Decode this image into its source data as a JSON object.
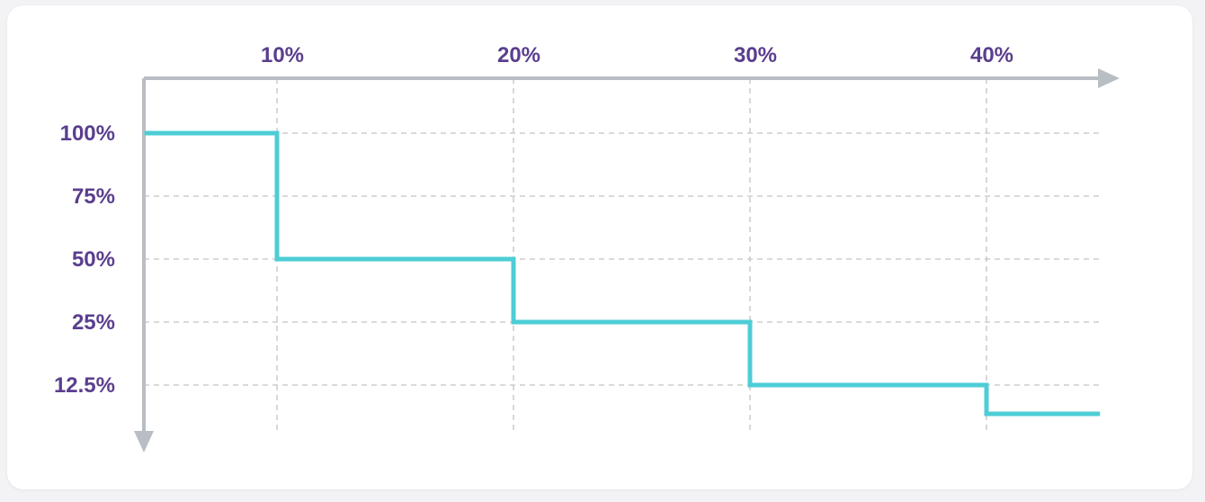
{
  "chart_data": {
    "type": "line",
    "step": true,
    "title": "",
    "xlabel": "",
    "ylabel": "",
    "x_axis_position": "top",
    "x_tick_labels": [
      "10%",
      "20%",
      "30%",
      "40%"
    ],
    "x_ticks": [
      10,
      20,
      30,
      40
    ],
    "xlim": [
      4.4,
      44.8
    ],
    "y_tick_labels": [
      "100%",
      "75%",
      "50%",
      "25%",
      "12.5%"
    ],
    "grid": true,
    "series": [
      {
        "points": [
          [
            4.4,
            100
          ],
          [
            10,
            100
          ],
          [
            10,
            50
          ],
          [
            20,
            50
          ],
          [
            20,
            25
          ],
          [
            30,
            25
          ],
          [
            30,
            12.5
          ],
          [
            40,
            12.5
          ],
          [
            40,
            6.25
          ],
          [
            44.8,
            6.25
          ]
        ]
      }
    ],
    "colors": {
      "line": "#4ecdd6",
      "text": "#5a3e8e",
      "axis": "#b9bec4",
      "grid": "#c3c3c3"
    }
  }
}
